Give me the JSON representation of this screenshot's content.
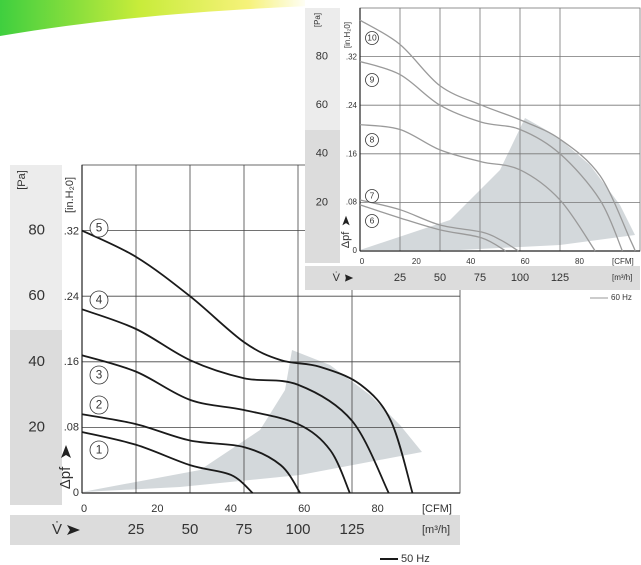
{
  "chart_data": [
    {
      "type": "line",
      "legend": "50 Hz",
      "y_label": "[Pa]",
      "y2_label": "[in.H₂0]",
      "y_axis_name": "Δpf",
      "x_axis_name": "V̇",
      "x_unit": "[m³/h]",
      "x2_unit": "[CFM]",
      "xlim": [
        0,
        175
      ],
      "xticks": [
        25,
        50,
        75,
        100,
        125
      ],
      "x2lim": [
        0,
        103
      ],
      "x2ticks": [
        0,
        20,
        40,
        60,
        80
      ],
      "ylim": [
        0,
        100
      ],
      "yticks": [
        20,
        40,
        60,
        80
      ],
      "y2lim": [
        0,
        0.4015
      ],
      "y2ticks": [
        0,
        {
          "value": 0.08,
          "label": ".08"
        },
        {
          "value": 0.16,
          "label": ".16"
        },
        {
          "value": 0.24,
          "label": ".24"
        },
        {
          "value": 0.32,
          "label": ".32"
        }
      ],
      "grid": true,
      "series": [
        {
          "name": "1",
          "color": "#1a1a1a",
          "x": [
            0,
            25,
            50,
            69,
            79
          ],
          "values": [
            18.6,
            14.7,
            8.5,
            5.5,
            0
          ]
        },
        {
          "name": "2",
          "color": "#1a1a1a",
          "x": [
            0,
            25,
            50,
            75,
            92,
            101
          ],
          "values": [
            24,
            21,
            16,
            14,
            8.5,
            0
          ]
        },
        {
          "name": "3",
          "color": "#1a1a1a",
          "x": [
            0,
            25,
            50,
            75,
            100,
            115,
            124
          ],
          "values": [
            42,
            37,
            28.4,
            25.3,
            21,
            13,
            0
          ]
        },
        {
          "name": "4",
          "color": "#1a1a1a",
          "x": [
            0,
            25,
            50,
            75,
            100,
            125,
            142
          ],
          "values": [
            56,
            50,
            40.5,
            35,
            33,
            22,
            0
          ]
        },
        {
          "name": "5",
          "color": "#1a1a1a",
          "x": [
            0,
            25,
            50,
            75,
            92,
            110,
            129,
            143,
            153
          ],
          "values": [
            80,
            72,
            60,
            46,
            40.5,
            38.5,
            33,
            22,
            0
          ]
        }
      ]
    },
    {
      "type": "line",
      "legend": "60 Hz",
      "y_label": "[Pa]",
      "y2_label": "[in.H₂0]",
      "y_axis_name": "Δpf",
      "x_axis_name": "V̇",
      "x_unit": "[m³/h]",
      "x2_unit": "[CFM]",
      "xlim": [
        0,
        175
      ],
      "xticks": [
        25,
        50,
        75,
        100,
        125
      ],
      "x2lim": [
        0,
        103
      ],
      "x2ticks": [
        0,
        20,
        40,
        60,
        80
      ],
      "ylim": [
        0,
        100
      ],
      "yticks": [
        20,
        40,
        60,
        80
      ],
      "y2lim": [
        0,
        0.4015
      ],
      "y2ticks": [
        0,
        {
          "value": 0.08,
          "label": ".08"
        },
        {
          "value": 0.16,
          "label": ".16"
        },
        {
          "value": 0.24,
          "label": ".24"
        },
        {
          "value": 0.32,
          "label": ".32"
        }
      ],
      "grid": true,
      "series": [
        {
          "name": "6",
          "color": "#9a9a9a",
          "x": [
            0,
            25,
            50,
            76,
            91
          ],
          "values": [
            19,
            13.6,
            8.7,
            5.4,
            0
          ]
        },
        {
          "name": "7",
          "color": "#9a9a9a",
          "x": [
            0,
            25,
            50,
            76,
            88,
            99
          ],
          "values": [
            21,
            17,
            10.7,
            7.8,
            4.5,
            0
          ]
        },
        {
          "name": "8",
          "color": "#9a9a9a",
          "x": [
            0,
            25,
            50,
            76,
            100,
            125,
            147
          ],
          "values": [
            52,
            50,
            41.6,
            36.7,
            33.4,
            21,
            0
          ]
        },
        {
          "name": "9",
          "color": "#9a9a9a",
          "x": [
            0,
            25,
            50,
            76,
            100,
            125,
            150,
            164
          ],
          "values": [
            78,
            72.6,
            60,
            53,
            50,
            40,
            21,
            0
          ]
        },
        {
          "name": "10",
          "color": "#9a9a9a",
          "x": [
            0,
            25,
            50,
            76,
            100,
            125,
            150,
            169,
            172
          ],
          "values": [
            95,
            85,
            68,
            60,
            54,
            46,
            31,
            4.5,
            0
          ]
        }
      ]
    }
  ]
}
